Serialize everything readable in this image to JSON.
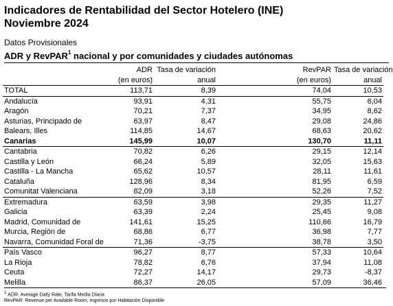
{
  "title_line1": "Indicadores de Rentabilidad del Sector Hotelero (INE)",
  "title_line2": "Noviembre 2024",
  "subtitle": "Datos Provisionales",
  "heading_main": "ADR y RevPAR",
  "heading_sup": "1",
  "heading_rest": " nacional y por comunidades y ciudades autónomas",
  "columns": {
    "adr": "ADR",
    "adr_unit": "(en euros)",
    "tasa1": "Tasa de variación",
    "tasa1_sub": "anual",
    "revpar": "RevPAR",
    "revpar_unit": "(en euros)",
    "tasa2": "Tasa de variación",
    "tasa2_sub": "anual"
  },
  "rows": [
    {
      "name": "TOTAL",
      "adr": "113,71",
      "adr_var": "8,39",
      "revpar": "74,04",
      "revpar_var": "10,53"
    },
    {
      "name": "Andalucía",
      "adr": "93,91",
      "adr_var": "4,31",
      "revpar": "55,75",
      "revpar_var": "6,04"
    },
    {
      "name": "Aragón",
      "adr": "70,21",
      "adr_var": "7,37",
      "revpar": "34,95",
      "revpar_var": "8,62"
    },
    {
      "name": "Asturias, Principado de",
      "adr": "63,97",
      "adr_var": "8,47",
      "revpar": "29,08",
      "revpar_var": "24,86"
    },
    {
      "name": "Balears, Illes",
      "adr": "114,85",
      "adr_var": "14,67",
      "revpar": "68,63",
      "revpar_var": "20,62"
    },
    {
      "name": "Canarias",
      "adr": "145,99",
      "adr_var": "10,07",
      "revpar": "130,70",
      "revpar_var": "11,11"
    },
    {
      "name": "Cantabria",
      "adr": "70,82",
      "adr_var": "6,26",
      "revpar": "29,15",
      "revpar_var": "12,14"
    },
    {
      "name": "Castilla y León",
      "adr": "66,24",
      "adr_var": "5,89",
      "revpar": "32,05",
      "revpar_var": "15,63"
    },
    {
      "name": "Castilla - La Mancha",
      "adr": "65,62",
      "adr_var": "10,57",
      "revpar": "28,11",
      "revpar_var": "11,61"
    },
    {
      "name": "Cataluña",
      "adr": "128,96",
      "adr_var": "8,34",
      "revpar": "81,95",
      "revpar_var": "6,59"
    },
    {
      "name": "Comunitat Valenciana",
      "adr": "82,09",
      "adr_var": "3,18",
      "revpar": "52,26",
      "revpar_var": "7,52"
    },
    {
      "name": "Extremadura",
      "adr": "63,59",
      "adr_var": "3,98",
      "revpar": "29,35",
      "revpar_var": "11,27"
    },
    {
      "name": "Galicia",
      "adr": "63,39",
      "adr_var": "2,24",
      "revpar": "25,45",
      "revpar_var": "9,08"
    },
    {
      "name": "Madrid, Comunidad de",
      "adr": "141,61",
      "adr_var": "15,25",
      "revpar": "110,66",
      "revpar_var": "16,79"
    },
    {
      "name": "Murcia, Región de",
      "adr": "68,86",
      "adr_var": "6,77",
      "revpar": "36,98",
      "revpar_var": "7,77"
    },
    {
      "name": "Navarra, Comunidad Foral de",
      "adr": "71,36",
      "adr_var": "-3,75",
      "revpar": "38,78",
      "revpar_var": "3,50"
    },
    {
      "name": "País Vasco",
      "adr": "96,27",
      "adr_var": "8,77",
      "revpar": "57,33",
      "revpar_var": "10,64"
    },
    {
      "name": "La Rioja",
      "adr": "78,82",
      "adr_var": "6,76",
      "revpar": "37,94",
      "revpar_var": "11,08"
    },
    {
      "name": "Ceuta",
      "adr": "72,27",
      "adr_var": "14,17",
      "revpar": "29,73",
      "revpar_var": "-8,37"
    },
    {
      "name": "Melilla",
      "adr": "86,37",
      "adr_var": "26,05",
      "revpar": "57,09",
      "revpar_var": "36,46"
    }
  ],
  "footnote1_sup": "1",
  "footnote1": "ADR: Average Daily Rate, Tarifa Media Diaria",
  "footnote2": "RevPAR: Revenue per Available Room, Ingresos por Habitación Disponible"
}
